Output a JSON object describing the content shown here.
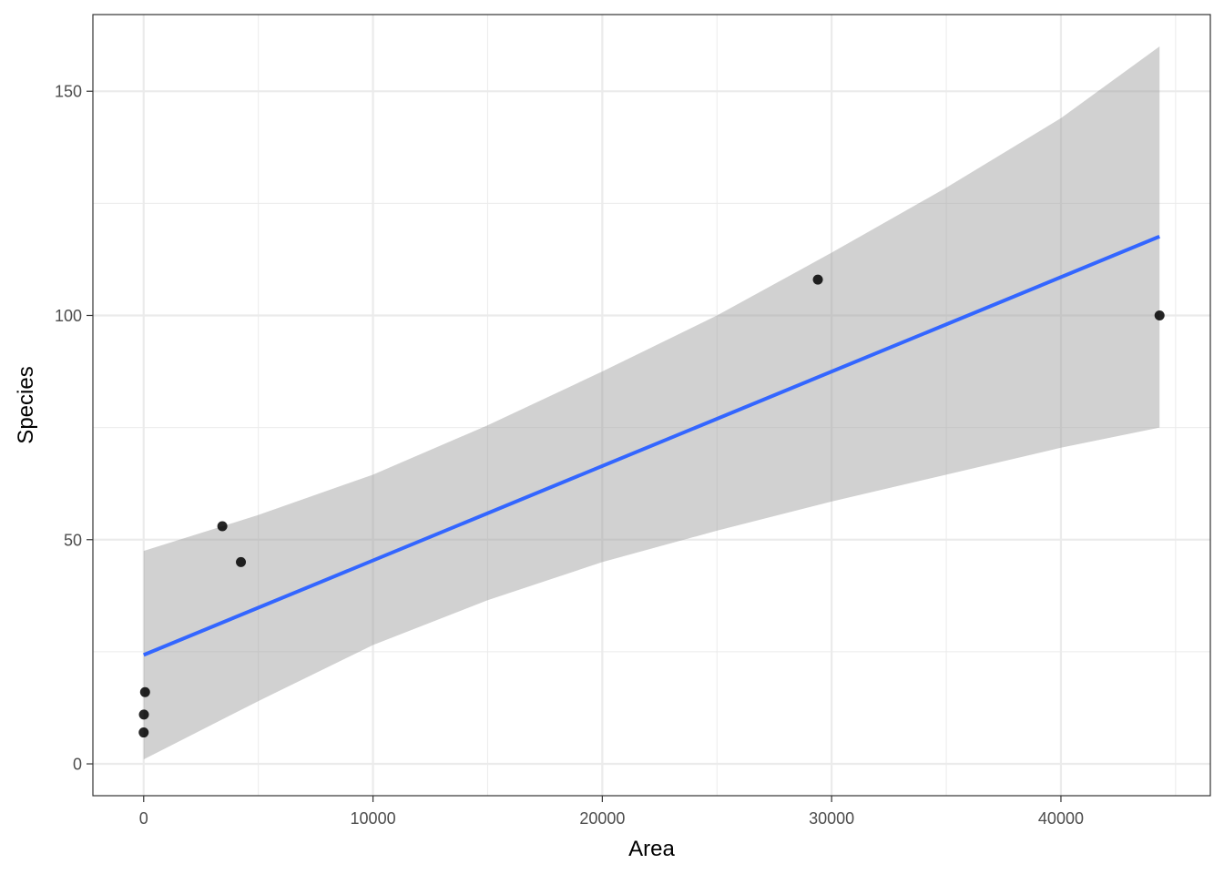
{
  "chart_data": {
    "type": "scatter",
    "title": "",
    "xlabel": "Area",
    "ylabel": "Species",
    "xlim": [
      -2215,
      46515
    ],
    "ylim": [
      -7.1,
      167.1
    ],
    "x_major_ticks": [
      0,
      10000,
      20000,
      30000,
      40000
    ],
    "x_tick_labels": [
      "0",
      "10000",
      "20000",
      "30000",
      "40000"
    ],
    "x_minor_ticks": [
      5000,
      15000,
      25000,
      35000,
      45000
    ],
    "y_major_ticks": [
      0,
      50,
      100,
      150
    ],
    "y_tick_labels": [
      "0",
      "50",
      "100",
      "150"
    ],
    "y_minor_ticks": [
      25,
      75,
      125
    ],
    "grid": true,
    "legend": "none",
    "points": [
      {
        "x": 0,
        "y": 7
      },
      {
        "x": 10,
        "y": 11
      },
      {
        "x": 60,
        "y": 16
      },
      {
        "x": 3430,
        "y": 53
      },
      {
        "x": 4240,
        "y": 45
      },
      {
        "x": 29400,
        "y": 108
      },
      {
        "x": 44300,
        "y": 100
      }
    ],
    "fit_line": {
      "method": "linear",
      "x": [
        0,
        44300
      ],
      "y": [
        24.3,
        117.6
      ]
    },
    "confidence_band": {
      "x": [
        0,
        5000,
        10000,
        15000,
        20000,
        25000,
        30000,
        35000,
        40000,
        44300
      ],
      "lower": [
        1.0,
        14.0,
        26.5,
        36.5,
        45.0,
        52.0,
        58.5,
        64.5,
        70.5,
        75.0
      ],
      "upper": [
        47.5,
        55.5,
        64.5,
        75.5,
        87.5,
        100.0,
        114.0,
        128.5,
        144.0,
        160.0
      ]
    },
    "colors": {
      "points": "#000000",
      "fit_line": "#3366FF",
      "band": "#999999",
      "grid": "#ebebeb",
      "panel_border": "#333333",
      "tick_text": "#4d4d4d"
    }
  }
}
